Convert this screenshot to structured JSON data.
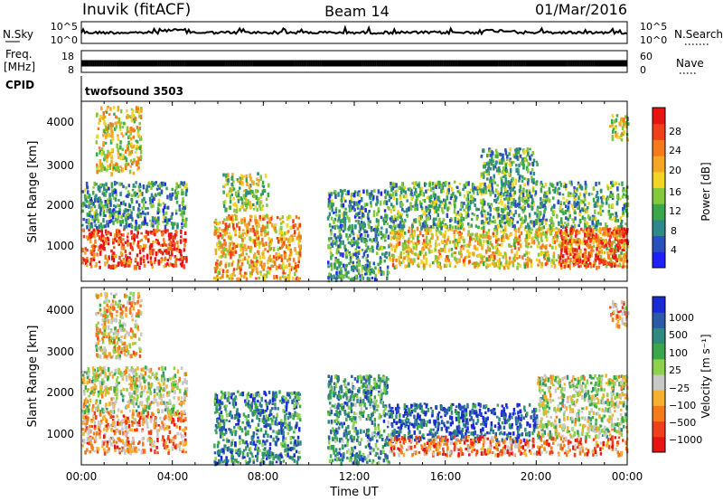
{
  "header": {
    "station": "Inuvik (fitACF)",
    "beam": "Beam 14",
    "date": "01/Mar/2016"
  },
  "panels": {
    "nsky": {
      "left_label": "N.Sky",
      "left_ticks": [
        "10^5",
        "10^0"
      ],
      "right_label": "N.Search",
      "right_ticks": [
        "10^5",
        "10^0"
      ]
    },
    "freq": {
      "left_label_line1": "Freq.",
      "left_label_line2": "[MHz]",
      "left_ticks": [
        "18",
        "8"
      ],
      "right_label": "Nave",
      "right_ticks": [
        "60",
        "0"
      ]
    },
    "cpid": {
      "label": "CPID",
      "program": "twofsound  3503"
    }
  },
  "x_axis": {
    "label": "Time UT",
    "ticks": [
      "00:00",
      "04:00",
      "08:00",
      "12:00",
      "16:00",
      "20:00",
      "00:00"
    ]
  },
  "chart_data": [
    {
      "type": "heatmap",
      "title": "",
      "ylabel": "Slant Range [km]",
      "yticks": [
        "1000",
        "2000",
        "3000",
        "4000"
      ],
      "ylim": [
        180,
        4500
      ],
      "xlim_hours": [
        0,
        24
      ],
      "colorbar_label": "Power [dB]",
      "colorbar_ticks": [
        "4",
        "8",
        "12",
        "16",
        "20",
        "24",
        "28"
      ],
      "colorscale": [
        "#1f1fff",
        "#2a4fbe",
        "#2e8a8a",
        "#3aa84a",
        "#84c83c",
        "#f2d424",
        "#f5a623",
        "#f47a1c",
        "#f0401a",
        "#e81414"
      ],
      "regions": [
        {
          "t0": 0.0,
          "t1": 4.6,
          "r0": 550,
          "r1": 1450,
          "level": 0.85
        },
        {
          "t0": 0.0,
          "t1": 4.6,
          "r0": 1500,
          "r1": 2600,
          "level": 0.3
        },
        {
          "t0": 0.6,
          "t1": 2.6,
          "r0": 2800,
          "r1": 4400,
          "level": 0.55
        },
        {
          "t0": 5.8,
          "t1": 9.6,
          "r0": 250,
          "r1": 1800,
          "level": 0.65
        },
        {
          "t0": 6.2,
          "t1": 8.2,
          "r0": 1900,
          "r1": 2800,
          "level": 0.45
        },
        {
          "t0": 10.8,
          "t1": 13.5,
          "r0": 250,
          "r1": 2400,
          "level": 0.3
        },
        {
          "t0": 13.5,
          "t1": 24.0,
          "r0": 550,
          "r1": 1500,
          "level": 0.6
        },
        {
          "t0": 13.5,
          "t1": 24.0,
          "r0": 1500,
          "r1": 2600,
          "level": 0.35
        },
        {
          "t0": 21.0,
          "t1": 24.0,
          "r0": 550,
          "r1": 1500,
          "level": 0.85
        },
        {
          "t0": 17.5,
          "t1": 20.0,
          "r0": 2600,
          "r1": 3400,
          "level": 0.35
        },
        {
          "t0": 23.2,
          "t1": 24.0,
          "r0": 3600,
          "r1": 4200,
          "level": 0.5
        }
      ]
    },
    {
      "type": "heatmap",
      "title": "",
      "ylabel": "Slant Range [km]",
      "yticks": [
        "1000",
        "2000",
        "3000",
        "4000"
      ],
      "ylim": [
        180,
        4500
      ],
      "xlim_hours": [
        0,
        24
      ],
      "colorbar_label": "Velocity [m s⁻¹]",
      "colorbar_ticks": [
        "1000",
        "500",
        "100",
        "25",
        "−25",
        "−100",
        "−500",
        "−1000"
      ],
      "colorscale": [
        "#1a2bd6",
        "#2a5aa8",
        "#2f8a80",
        "#3aa84a",
        "#8cd24a",
        "#c8c8c8",
        "#f5b030",
        "#f47a1c",
        "#f0401a",
        "#e81414"
      ],
      "regions": [
        {
          "t0": 0.0,
          "t1": 4.6,
          "r0": 500,
          "r1": 1500,
          "level": 0.72
        },
        {
          "t0": 0.0,
          "t1": 4.6,
          "r0": 1500,
          "r1": 2600,
          "level": 0.5
        },
        {
          "t0": 0.6,
          "t1": 2.6,
          "r0": 2800,
          "r1": 4400,
          "level": 0.6
        },
        {
          "t0": 5.8,
          "t1": 9.6,
          "r0": 250,
          "r1": 2000,
          "level": 0.25
        },
        {
          "t0": 10.8,
          "t1": 13.5,
          "r0": 250,
          "r1": 2400,
          "level": 0.3
        },
        {
          "t0": 13.5,
          "t1": 20.0,
          "r0": 800,
          "r1": 1700,
          "level": 0.12
        },
        {
          "t0": 13.5,
          "t1": 24.0,
          "r0": 450,
          "r1": 900,
          "level": 0.75
        },
        {
          "t0": 20.0,
          "t1": 24.0,
          "r0": 900,
          "r1": 2400,
          "level": 0.5
        },
        {
          "t0": 23.2,
          "t1": 24.0,
          "r0": 3600,
          "r1": 4200,
          "level": 0.7
        }
      ]
    }
  ]
}
